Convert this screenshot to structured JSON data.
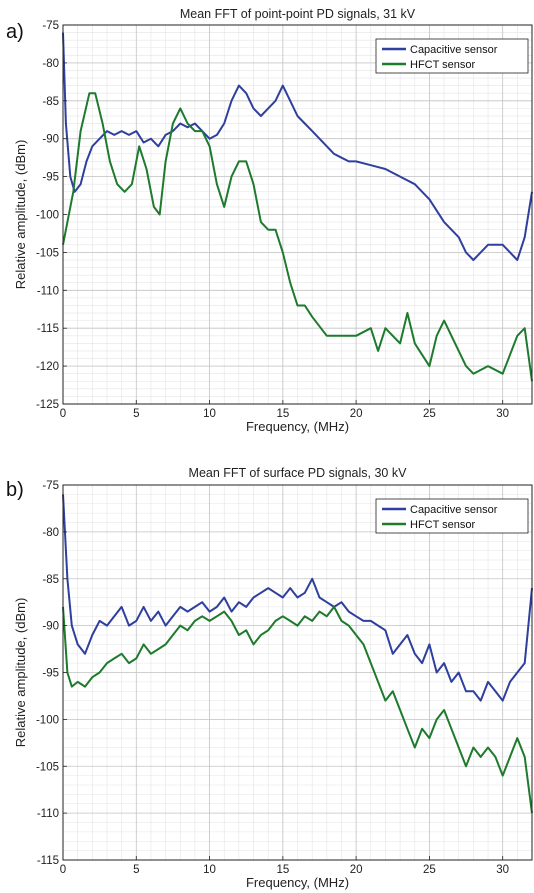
{
  "colors": {
    "capacitive": "#2e3f9e",
    "hfct": "#1e7a2c"
  },
  "chart_data": [
    {
      "type": "line",
      "panel_label": "a)",
      "title": "Mean FFT of point-point PD signals, 31 kV",
      "xlabel": "Frequency, (MHz)",
      "ylabel": "Relative amplitude, (dBm)",
      "xlim": [
        0,
        32
      ],
      "ylim": [
        -125,
        -75
      ],
      "xticks": [
        0,
        5,
        10,
        15,
        20,
        25,
        30
      ],
      "yticks": [
        -75,
        -80,
        -85,
        -90,
        -95,
        -100,
        -105,
        -110,
        -115,
        -120,
        -125
      ],
      "grid": true,
      "legend": "top-right",
      "series": [
        {
          "name": "Capacitive sensor",
          "color": "#2e3f9e",
          "x": [
            0,
            0.2,
            0.5,
            0.8,
            1.2,
            1.6,
            2.0,
            2.5,
            3.0,
            3.5,
            4.0,
            4.5,
            5.0,
            5.5,
            6.0,
            6.5,
            7.0,
            7.5,
            8.0,
            8.5,
            9.0,
            9.5,
            10.0,
            10.5,
            11.0,
            11.5,
            12.0,
            12.5,
            13.0,
            13.5,
            14.0,
            14.5,
            15.0,
            15.5,
            16.0,
            16.5,
            17.0,
            17.5,
            18.0,
            18.5,
            19.0,
            19.5,
            20.0,
            21.0,
            22.0,
            23.0,
            24.0,
            25.0,
            26.0,
            27.0,
            27.5,
            28.0,
            29.0,
            30.0,
            31.0,
            31.5,
            32.0
          ],
          "y": [
            -76,
            -88,
            -95,
            -97,
            -96,
            -93,
            -91,
            -90,
            -89,
            -89.5,
            -89,
            -89.5,
            -89,
            -90.5,
            -90,
            -91,
            -89.5,
            -89,
            -88,
            -88.5,
            -88,
            -89,
            -90,
            -89.5,
            -88,
            -85,
            -83,
            -84,
            -86,
            -87,
            -86,
            -85,
            -83,
            -85,
            -87,
            -88,
            -89,
            -90,
            -91,
            -92,
            -92.5,
            -93,
            -93,
            -93.5,
            -94,
            -95,
            -96,
            -98,
            -101,
            -103,
            -105,
            -106,
            -104,
            -104,
            -106,
            -103,
            -97
          ]
        },
        {
          "name": "HFCT sensor",
          "color": "#1e7a2c",
          "x": [
            0,
            0.3,
            0.7,
            1.2,
            1.8,
            2.2,
            2.7,
            3.2,
            3.7,
            4.2,
            4.7,
            5.2,
            5.7,
            6.2,
            6.6,
            7.0,
            7.5,
            8.0,
            8.5,
            9.0,
            9.5,
            10.0,
            10.5,
            11.0,
            11.5,
            12.0,
            12.5,
            13.0,
            13.5,
            14.0,
            14.5,
            15.0,
            15.5,
            16.0,
            16.5,
            17.0,
            18.0,
            19.0,
            20.0,
            21.0,
            21.5,
            22.0,
            23.0,
            23.5,
            24.0,
            25.0,
            25.5,
            26.0,
            27.0,
            27.5,
            28.0,
            29.0,
            30.0,
            31.0,
            31.5,
            32.0
          ],
          "y": [
            -104,
            -101,
            -97,
            -89,
            -84,
            -84,
            -88,
            -93,
            -96,
            -97,
            -96,
            -91,
            -94,
            -99,
            -100,
            -93,
            -88,
            -86,
            -88,
            -89,
            -89,
            -91,
            -96,
            -99,
            -95,
            -93,
            -93,
            -96,
            -101,
            -102,
            -102,
            -105,
            -109,
            -112,
            -112,
            -113.5,
            -116,
            -116,
            -116,
            -115,
            -118,
            -115,
            -117,
            -113,
            -117,
            -120,
            -116,
            -114,
            -118,
            -120,
            -121,
            -120,
            -121,
            -116,
            -115,
            -122
          ]
        }
      ]
    },
    {
      "type": "line",
      "panel_label": "b)",
      "title": "Mean FFT of surface PD signals, 30 kV",
      "xlabel": "Frequency, (MHz)",
      "ylabel": "Relative amplitude, (dBm)",
      "xlim": [
        0,
        32
      ],
      "ylim": [
        -115,
        -75
      ],
      "xticks": [
        0,
        5,
        10,
        15,
        20,
        25,
        30
      ],
      "yticks": [
        -75,
        -80,
        -85,
        -90,
        -95,
        -100,
        -105,
        -110,
        -115
      ],
      "grid": true,
      "legend": "top-right",
      "series": [
        {
          "name": "Capacitive sensor",
          "color": "#2e3f9e",
          "x": [
            0,
            0.3,
            0.6,
            1.0,
            1.5,
            2.0,
            2.5,
            3.0,
            3.5,
            4.0,
            4.5,
            5.0,
            5.5,
            6.0,
            6.5,
            7.0,
            7.5,
            8.0,
            8.5,
            9.0,
            9.5,
            10.0,
            10.5,
            11.0,
            11.5,
            12.0,
            12.5,
            13.0,
            13.5,
            14.0,
            14.5,
            15.0,
            15.5,
            16.0,
            16.5,
            17.0,
            17.5,
            18.0,
            18.5,
            19.0,
            19.5,
            20.0,
            20.5,
            21.0,
            21.5,
            22.0,
            22.5,
            23.0,
            23.5,
            24.0,
            24.5,
            25.0,
            25.5,
            26.0,
            26.5,
            27.0,
            27.5,
            28.0,
            28.5,
            29.0,
            29.5,
            30.0,
            30.5,
            31.0,
            31.5,
            32.0
          ],
          "y": [
            -76,
            -85,
            -90,
            -92,
            -93,
            -91,
            -89.5,
            -90,
            -89,
            -88,
            -90,
            -89.5,
            -88,
            -89.5,
            -88.5,
            -90,
            -89,
            -88,
            -88.5,
            -88,
            -87.5,
            -88.5,
            -88,
            -87,
            -88.5,
            -87.5,
            -88,
            -87,
            -86.5,
            -86,
            -86.5,
            -87,
            -86,
            -87,
            -86.5,
            -85,
            -87,
            -87.5,
            -88,
            -87.5,
            -88.5,
            -89,
            -89.5,
            -89.5,
            -90,
            -90.5,
            -93,
            -92,
            -91,
            -93,
            -94,
            -92,
            -95,
            -94,
            -96,
            -95,
            -97,
            -97,
            -98,
            -96,
            -97,
            -98,
            -96,
            -95,
            -94,
            -86
          ]
        },
        {
          "name": "HFCT sensor",
          "color": "#1e7a2c",
          "x": [
            0,
            0.3,
            0.6,
            1.0,
            1.5,
            2.0,
            2.5,
            3.0,
            3.5,
            4.0,
            4.5,
            5.0,
            5.5,
            6.0,
            6.5,
            7.0,
            7.5,
            8.0,
            8.5,
            9.0,
            9.5,
            10.0,
            10.5,
            11.0,
            11.5,
            12.0,
            12.5,
            13.0,
            13.5,
            14.0,
            14.5,
            15.0,
            15.5,
            16.0,
            16.5,
            17.0,
            17.5,
            18.0,
            18.5,
            19.0,
            19.5,
            20.0,
            20.5,
            21.0,
            21.5,
            22.0,
            22.5,
            23.0,
            23.5,
            24.0,
            24.5,
            25.0,
            25.5,
            26.0,
            26.5,
            27.0,
            27.5,
            28.0,
            28.5,
            29.0,
            29.5,
            30.0,
            30.5,
            31.0,
            31.5,
            32.0
          ],
          "y": [
            -88,
            -95,
            -96.5,
            -96,
            -96.5,
            -95.5,
            -95,
            -94,
            -93.5,
            -93,
            -94,
            -93.5,
            -92,
            -93,
            -92.5,
            -92,
            -91,
            -90,
            -90.5,
            -89.5,
            -89,
            -89.5,
            -89,
            -88.5,
            -89.5,
            -91,
            -90.5,
            -92,
            -91,
            -90.5,
            -89.5,
            -89,
            -89.5,
            -90,
            -89,
            -89.5,
            -88.5,
            -89,
            -88,
            -89.5,
            -90,
            -91,
            -92,
            -94,
            -96,
            -98,
            -97,
            -99,
            -101,
            -103,
            -101,
            -102,
            -100,
            -99,
            -101,
            -103,
            -105,
            -103,
            -104,
            -103,
            -104,
            -106,
            -104,
            -102,
            -104,
            -110
          ]
        }
      ]
    }
  ]
}
